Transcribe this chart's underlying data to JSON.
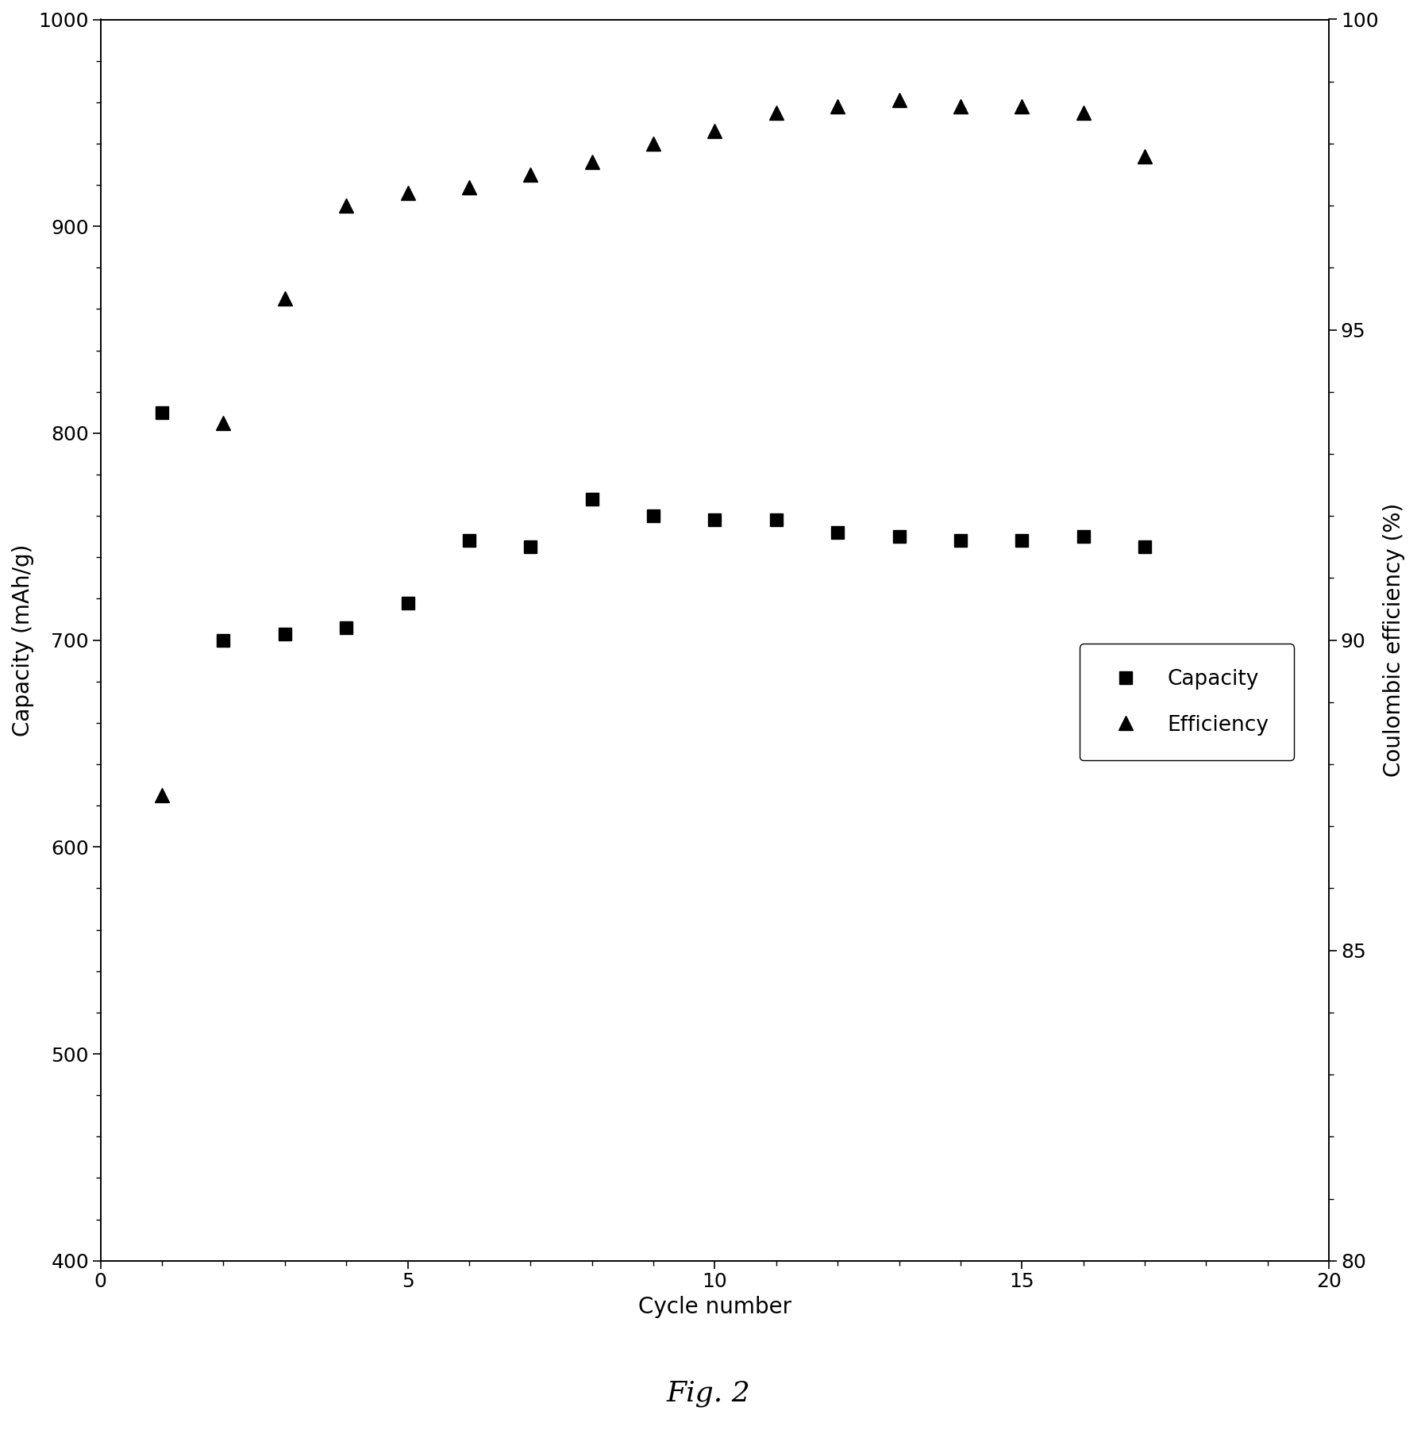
{
  "capacity_x": [
    1,
    2,
    3,
    4,
    5,
    6,
    7,
    8,
    9,
    10,
    11,
    12,
    13,
    14,
    15,
    16,
    17
  ],
  "capacity_y": [
    810,
    700,
    703,
    706,
    718,
    748,
    745,
    768,
    760,
    758,
    758,
    752,
    750,
    748,
    748,
    750,
    745
  ],
  "efficiency_x": [
    1,
    2,
    3,
    4,
    5,
    6,
    7,
    8,
    9,
    10,
    11,
    12,
    13,
    14,
    15,
    16,
    17
  ],
  "efficiency_y": [
    87.5,
    93.5,
    95.5,
    97.0,
    97.2,
    97.3,
    97.5,
    97.7,
    98.0,
    98.2,
    98.5,
    98.6,
    98.7,
    98.6,
    98.6,
    98.5,
    97.8
  ],
  "capacity_label": "Capacity",
  "efficiency_label": "Efficiency",
  "xlabel": "Cycle number",
  "ylabel_left": "Capacity (mAh/g)",
  "ylabel_right": "Coulombic efficiency (%)",
  "xlim": [
    0,
    20
  ],
  "ylim_left": [
    400,
    1000
  ],
  "ylim_right": [
    80,
    100
  ],
  "yticks_left": [
    400,
    500,
    600,
    700,
    800,
    900,
    1000
  ],
  "yticks_right": [
    80,
    85,
    90,
    95,
    100
  ],
  "xticks": [
    0,
    5,
    10,
    15,
    20
  ],
  "marker_capacity": "s",
  "marker_efficiency": "^",
  "marker_color": "black",
  "fig_caption": "Fig. 2",
  "label_fontsize": 20,
  "tick_fontsize": 18,
  "legend_fontsize": 19,
  "caption_fontsize": 26,
  "markersize_cap": 11,
  "markersize_eff": 13
}
